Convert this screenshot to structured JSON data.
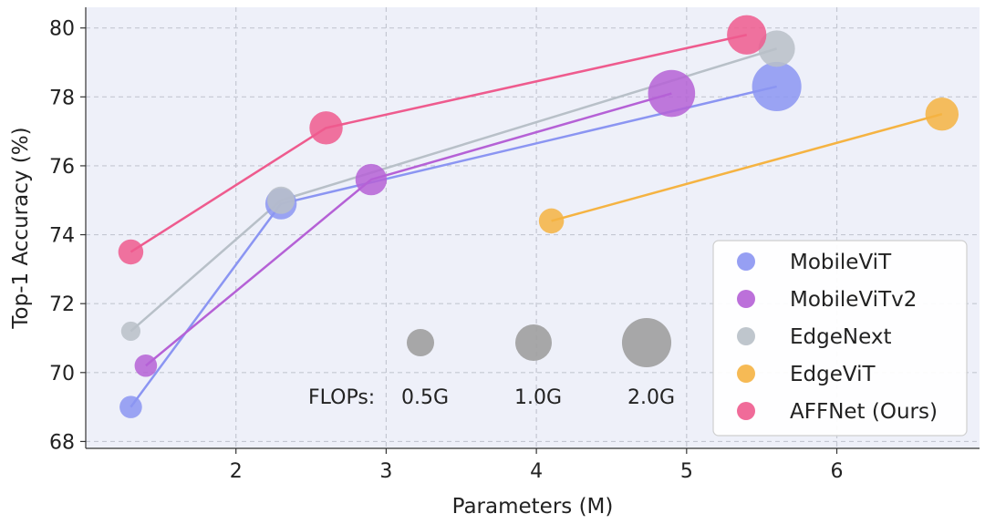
{
  "chart_data": {
    "type": "scatter",
    "xlabel": "Parameters (M)",
    "ylabel": "Top-1 Accuracy (%)",
    "xlim": [
      1.0,
      6.95
    ],
    "ylim": [
      67.8,
      80.6
    ],
    "xticks": [
      2,
      3,
      4,
      5,
      6
    ],
    "yticks": [
      68,
      70,
      72,
      74,
      76,
      78,
      80
    ],
    "grid": true,
    "legend_position": "lower-right",
    "series": [
      {
        "name": "MobileViT",
        "color": "#8b95f2",
        "points": [
          {
            "x": 1.3,
            "y": 69.0,
            "flops": 0.3
          },
          {
            "x": 2.3,
            "y": 74.9,
            "flops": 0.7
          },
          {
            "x": 5.6,
            "y": 78.3,
            "flops": 2.0
          }
        ]
      },
      {
        "name": "MobileViTv2",
        "color": "#b561d6",
        "points": [
          {
            "x": 1.4,
            "y": 70.2,
            "flops": 0.3
          },
          {
            "x": 2.9,
            "y": 75.6,
            "flops": 0.7
          },
          {
            "x": 4.9,
            "y": 78.1,
            "flops": 1.8
          }
        ]
      },
      {
        "name": "EdgeNext",
        "color": "#b8c0c8",
        "points": [
          {
            "x": 1.3,
            "y": 71.2,
            "flops": 0.2
          },
          {
            "x": 2.3,
            "y": 75.0,
            "flops": 0.5
          },
          {
            "x": 5.6,
            "y": 79.4,
            "flops": 1.0
          }
        ]
      },
      {
        "name": "EdgeViT",
        "color": "#f5b342",
        "points": [
          {
            "x": 4.1,
            "y": 74.4,
            "flops": 0.4
          },
          {
            "x": 6.7,
            "y": 77.5,
            "flops": 0.8
          }
        ]
      },
      {
        "name": "AFFNet (Ours)",
        "color": "#ee5b8e",
        "points": [
          {
            "x": 1.3,
            "y": 73.5,
            "flops": 0.4
          },
          {
            "x": 2.6,
            "y": 77.1,
            "flops": 0.8
          },
          {
            "x": 5.4,
            "y": 79.8,
            "flops": 1.2
          }
        ]
      }
    ],
    "flops_legend": {
      "label": "FLOPs:",
      "items": [
        {
          "label": "0.5G",
          "flops": 0.5
        },
        {
          "label": "1.0G",
          "flops": 1.0
        },
        {
          "label": "2.0G",
          "flops": 2.0
        }
      ],
      "color": "#9e9e9e"
    }
  }
}
